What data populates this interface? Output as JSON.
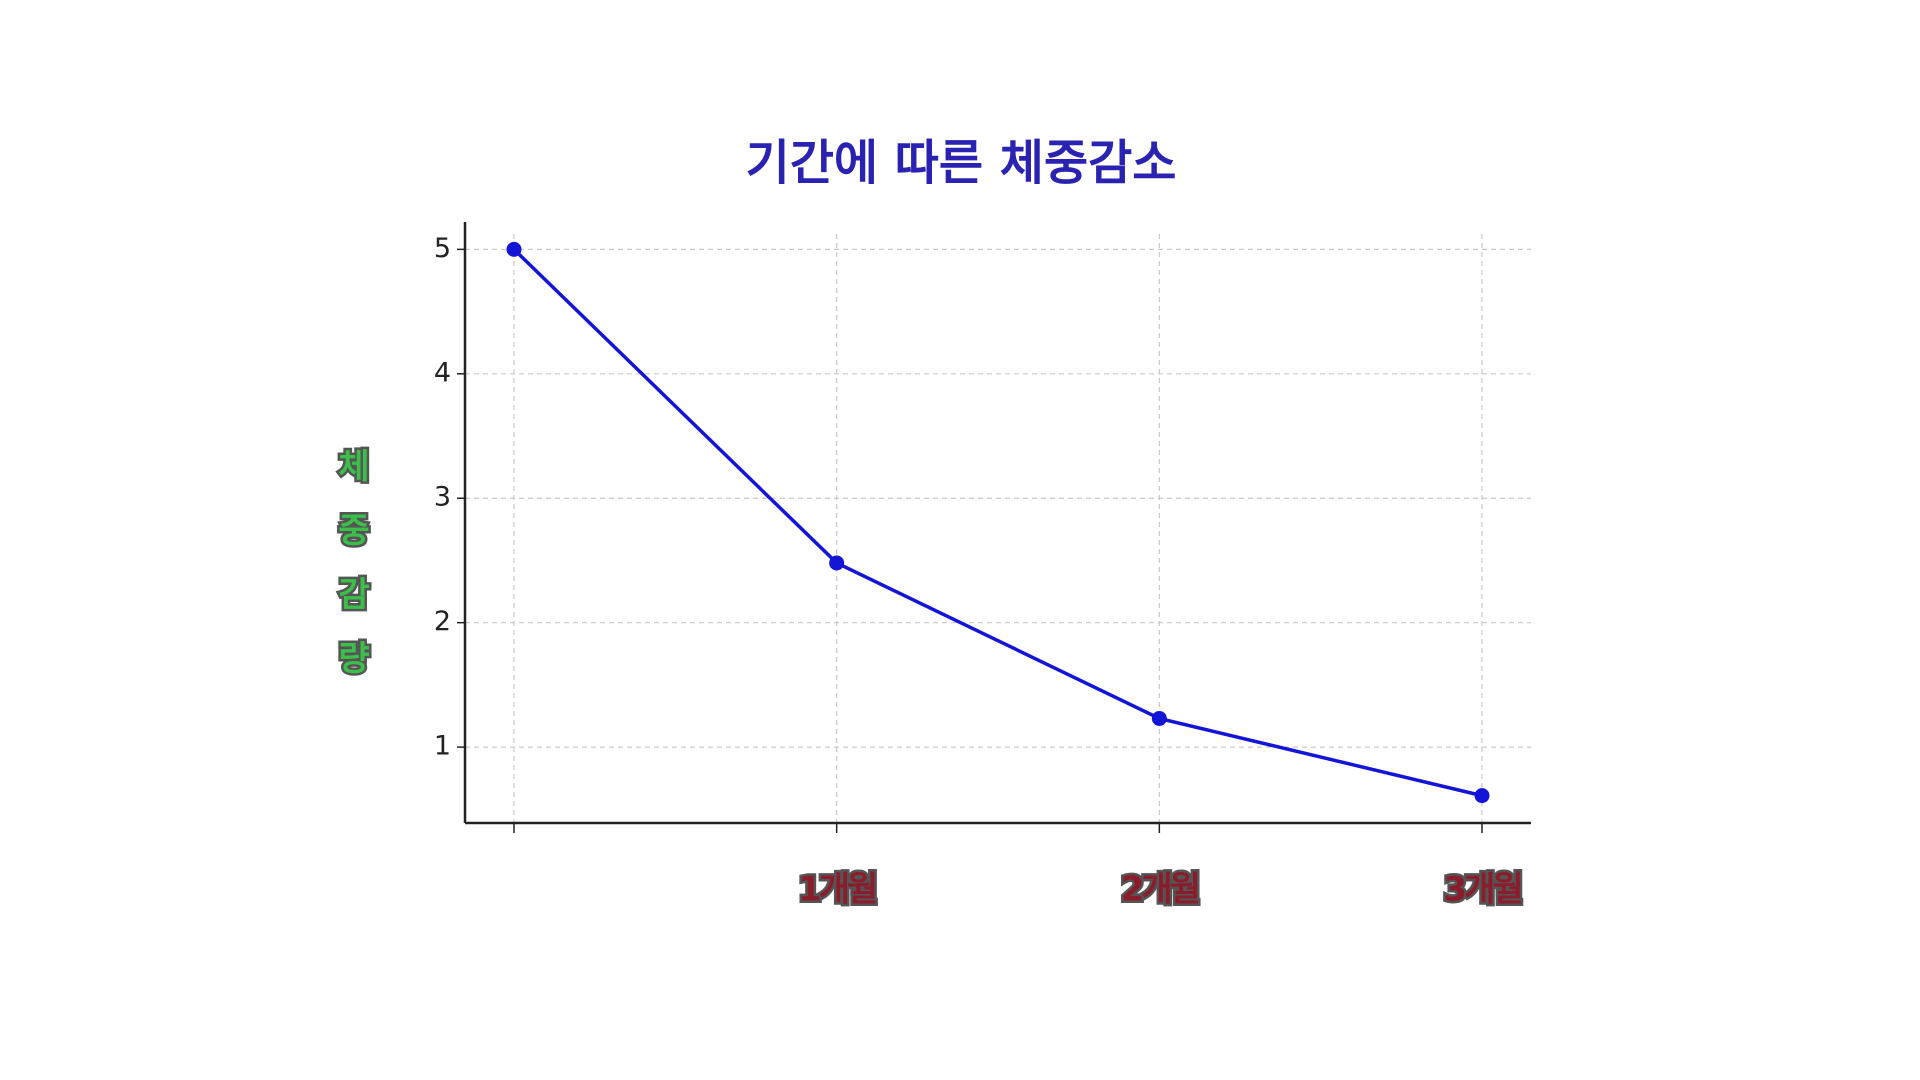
{
  "chart_data": {
    "type": "line",
    "title": "기간에 따른 체중감소",
    "y_label": "체중감량",
    "categories": [
      null,
      "1개월",
      "2개월",
      "3개월"
    ],
    "values": [
      5,
      2.48,
      1.23,
      0.61
    ],
    "color": "#1414d6",
    "ylim": [
      0.39,
      5.22
    ],
    "yticks": [
      1,
      2,
      3,
      4,
      5
    ],
    "grid": true
  }
}
